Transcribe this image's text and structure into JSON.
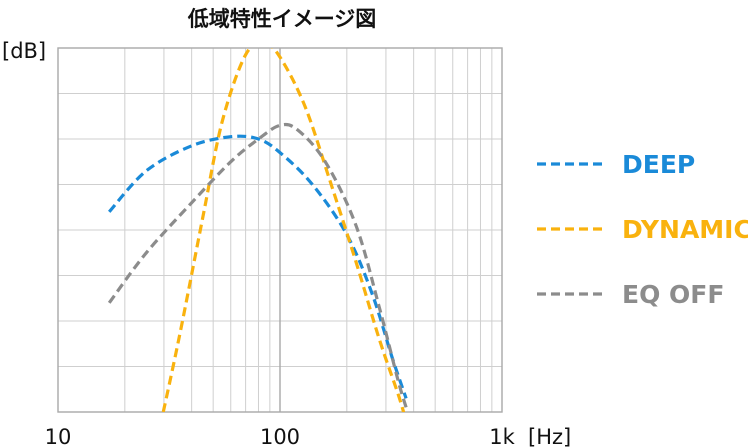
{
  "chart_data": {
    "type": "line",
    "title": "低域特性イメージ図",
    "ylabel": "[dB]",
    "xlabel": "[Hz]",
    "x_scale": "log",
    "xlim": [
      10,
      1000
    ],
    "x_ticks": [
      {
        "value": 10,
        "label": "10"
      },
      {
        "value": 100,
        "label": "100"
      },
      {
        "value": 1000,
        "label": "1k"
      }
    ],
    "grid": true,
    "legend_position": "right",
    "series": [
      {
        "name": "DEEP",
        "color": "#1a8ad8",
        "points": [
          [
            17,
            4.4
          ],
          [
            25,
            5.3
          ],
          [
            40,
            5.85
          ],
          [
            60,
            6.05
          ],
          [
            80,
            6.0
          ],
          [
            100,
            5.7
          ],
          [
            140,
            5.0
          ],
          [
            200,
            3.9
          ],
          [
            260,
            2.6
          ],
          [
            320,
            1.2
          ],
          [
            370,
            0.3
          ]
        ]
      },
      {
        "name": "DYNAMIC",
        "color": "#f9b20e",
        "points": [
          [
            28,
            -0.6
          ],
          [
            35,
            1.6
          ],
          [
            45,
            4.3
          ],
          [
            55,
            6.4
          ],
          [
            70,
            7.85
          ],
          [
            85,
            8.1
          ],
          [
            100,
            7.8
          ],
          [
            130,
            6.7
          ],
          [
            170,
            5.0
          ],
          [
            220,
            3.3
          ],
          [
            280,
            1.6
          ],
          [
            340,
            0.4
          ],
          [
            370,
            -0.2
          ]
        ]
      },
      {
        "name": "EQ OFF",
        "color": "#8c8c8c",
        "points": [
          [
            17,
            2.4
          ],
          [
            25,
            3.5
          ],
          [
            40,
            4.6
          ],
          [
            60,
            5.5
          ],
          [
            80,
            6.0
          ],
          [
            100,
            6.3
          ],
          [
            120,
            6.2
          ],
          [
            160,
            5.5
          ],
          [
            220,
            4.1
          ],
          [
            280,
            2.3
          ],
          [
            340,
            0.7
          ],
          [
            370,
            0.1
          ]
        ]
      }
    ]
  }
}
